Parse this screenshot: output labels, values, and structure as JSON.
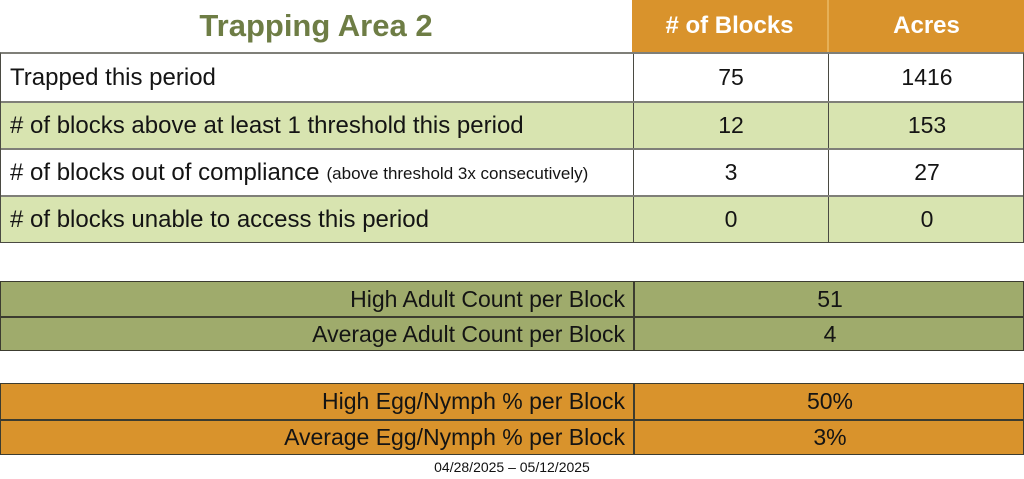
{
  "title": "Trapping Area 2",
  "colors": {
    "title_green": "#6E7D45",
    "header_orange": "#D9932C",
    "light_green_row": "#D8E4B0",
    "olive_row": "#9FAB6C",
    "header_text": "#FFFFFF"
  },
  "main_table": {
    "headers": [
      "# of Blocks",
      "Acres"
    ],
    "rows": [
      {
        "label": "Trapped this period",
        "note": "",
        "blocks": "75",
        "acres": "1416"
      },
      {
        "label": "# of blocks above at least 1 threshold this period",
        "note": "",
        "blocks": "12",
        "acres": "153"
      },
      {
        "label": "# of blocks out of compliance",
        "note": "(above threshold 3x consecutively)",
        "blocks": "3",
        "acres": "27"
      },
      {
        "label": "# of blocks unable to access this period",
        "note": "",
        "blocks": "0",
        "acres": "0"
      }
    ]
  },
  "adult_table": {
    "rows": [
      {
        "label": "High Adult Count per Block",
        "value": "51"
      },
      {
        "label": "Average Adult Count per Block",
        "value": "4"
      }
    ]
  },
  "egg_table": {
    "rows": [
      {
        "label": "High Egg/Nymph % per Block",
        "value": "50%"
      },
      {
        "label": "Average Egg/Nymph % per Block",
        "value": "3%"
      }
    ]
  },
  "footer": {
    "date_range": "04/28/2025 – 05/12/2025"
  }
}
